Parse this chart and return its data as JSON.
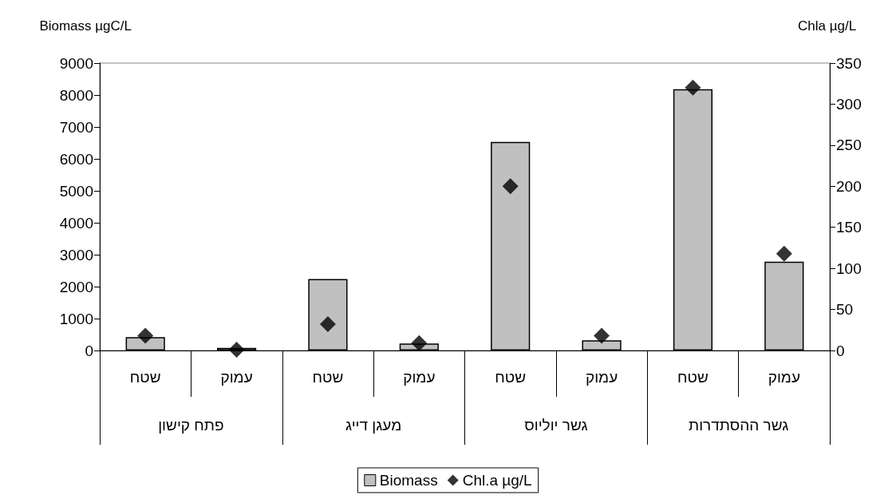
{
  "chart_data": {
    "type": "bar",
    "ylabel": "Biomass µgC/L",
    "y2label": "Chla µg/L",
    "categories": [
      "שטח",
      "עמוק",
      "שטח",
      "עמוק",
      "שטח",
      "עמוק",
      "שטח",
      "עמוק"
    ],
    "annotations": [
      "פתח קישון",
      "מעגן דייג",
      "גשר יוליוס",
      "גשר ההסתדרות"
    ],
    "series": [
      {
        "name": "Biomass",
        "color": "#c0c0c0",
        "values": [
          420,
          80,
          2240,
          220,
          6530,
          320,
          8180,
          2780
        ]
      },
      {
        "name": "Chl.a µg/L",
        "type": "scatter",
        "axis": "y2",
        "marker": "diamond",
        "color": "#000000",
        "values": [
          18,
          1,
          32,
          9,
          200,
          18,
          320,
          118
        ]
      }
    ],
    "ylim": [
      0,
      9000
    ],
    "yticks": [
      0,
      1000,
      2000,
      3000,
      4000,
      5000,
      6000,
      7000,
      8000,
      9000
    ],
    "y2lim": [
      0,
      350
    ],
    "y2ticks": [
      0,
      50,
      100,
      150,
      200,
      250,
      300,
      350
    ],
    "grid": false,
    "legend": "bottom"
  }
}
